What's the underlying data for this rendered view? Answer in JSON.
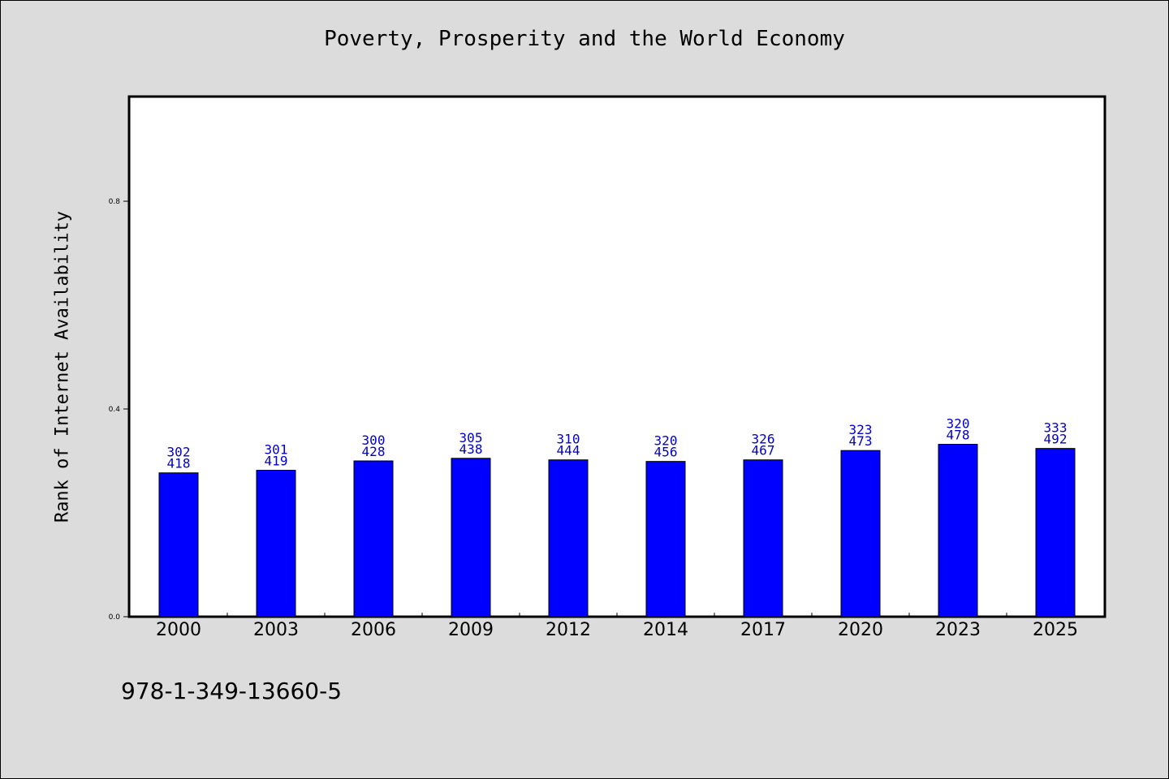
{
  "chart_data": {
    "type": "bar",
    "title": "Poverty, Prosperity and the World Economy",
    "xlabel": "",
    "ylabel": "Rank of Internet Availability",
    "categories": [
      "2000",
      "2003",
      "2006",
      "2009",
      "2012",
      "2014",
      "2017",
      "2020",
      "2023",
      "2025"
    ],
    "values": [
      0.277,
      0.282,
      0.3,
      0.305,
      0.302,
      0.299,
      0.302,
      0.32,
      0.332,
      0.324
    ],
    "label_top": [
      "302",
      "301",
      "300",
      "305",
      "310",
      "320",
      "326",
      "323",
      "320",
      "333"
    ],
    "label_bottom": [
      "418",
      "419",
      "428",
      "438",
      "444",
      "456",
      "467",
      "473",
      "478",
      "492"
    ],
    "ylim": [
      0,
      1.0
    ],
    "yticks": [
      "0.0",
      "0.4",
      "0.8"
    ],
    "grid": false,
    "colors": {
      "bar": "#0000ff",
      "label": "#0000cc",
      "background": "#dcdcdc",
      "plot": "#ffffff"
    }
  },
  "footer": {
    "code": "978-1-349-13660-5"
  }
}
